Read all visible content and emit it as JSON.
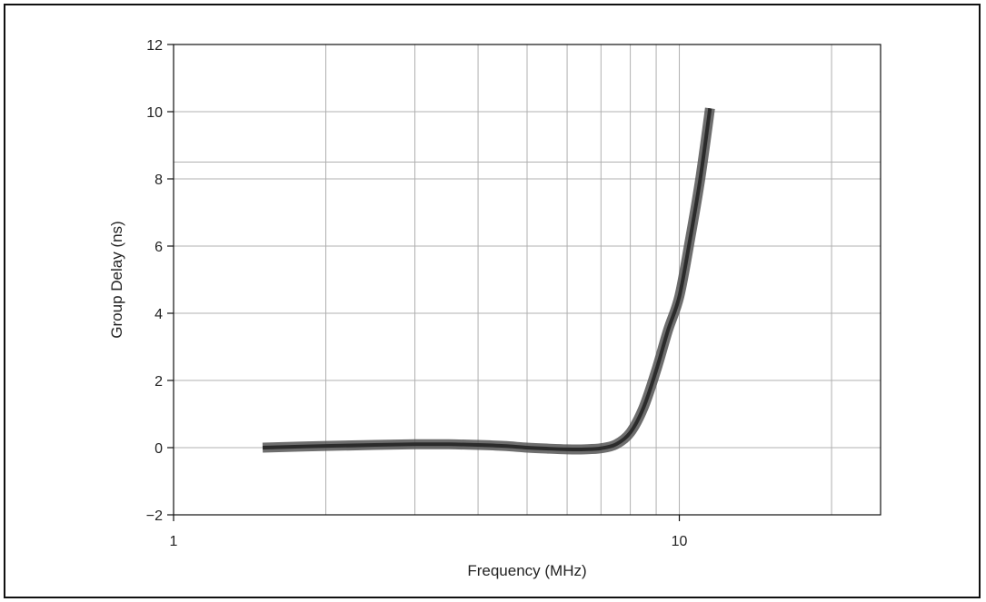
{
  "chart_data": {
    "type": "line",
    "xlabel": "Frequency (MHz)",
    "ylabel": "Group Delay (ns)",
    "x_scale": "log",
    "xlim": [
      1,
      25
    ],
    "ylim": [
      -2,
      12
    ],
    "grid": true,
    "x_tick_labels": [
      {
        "value": 1,
        "label": "1"
      },
      {
        "value": 10,
        "label": "10"
      }
    ],
    "x_gridlines": [
      2,
      3,
      4,
      5,
      6,
      7,
      8,
      9,
      10,
      20
    ],
    "y_ticks": [
      -2,
      0,
      2,
      4,
      6,
      8,
      10,
      12
    ],
    "y_tick_labels": [
      "−2",
      "0",
      "2",
      "4",
      "6",
      "8",
      "10",
      "12"
    ],
    "y_extra_gridlines": [
      8.5
    ],
    "series": [
      {
        "x": [
          1.5,
          2.0,
          2.5,
          3.0,
          3.5,
          4.0,
          4.5,
          5.0,
          5.5,
          6.0,
          6.5,
          7.0,
          7.5,
          8.0,
          8.5,
          9.0,
          9.5,
          10.0,
          10.5,
          11.0,
          11.5
        ],
        "y": [
          0.0,
          0.05,
          0.08,
          0.1,
          0.1,
          0.08,
          0.05,
          0.0,
          -0.03,
          -0.05,
          -0.05,
          -0.02,
          0.1,
          0.45,
          1.2,
          2.3,
          3.5,
          4.5,
          6.2,
          8.0,
          10.1
        ]
      }
    ],
    "colors": {
      "line": "#2b2b2b",
      "band": "#555555"
    }
  }
}
